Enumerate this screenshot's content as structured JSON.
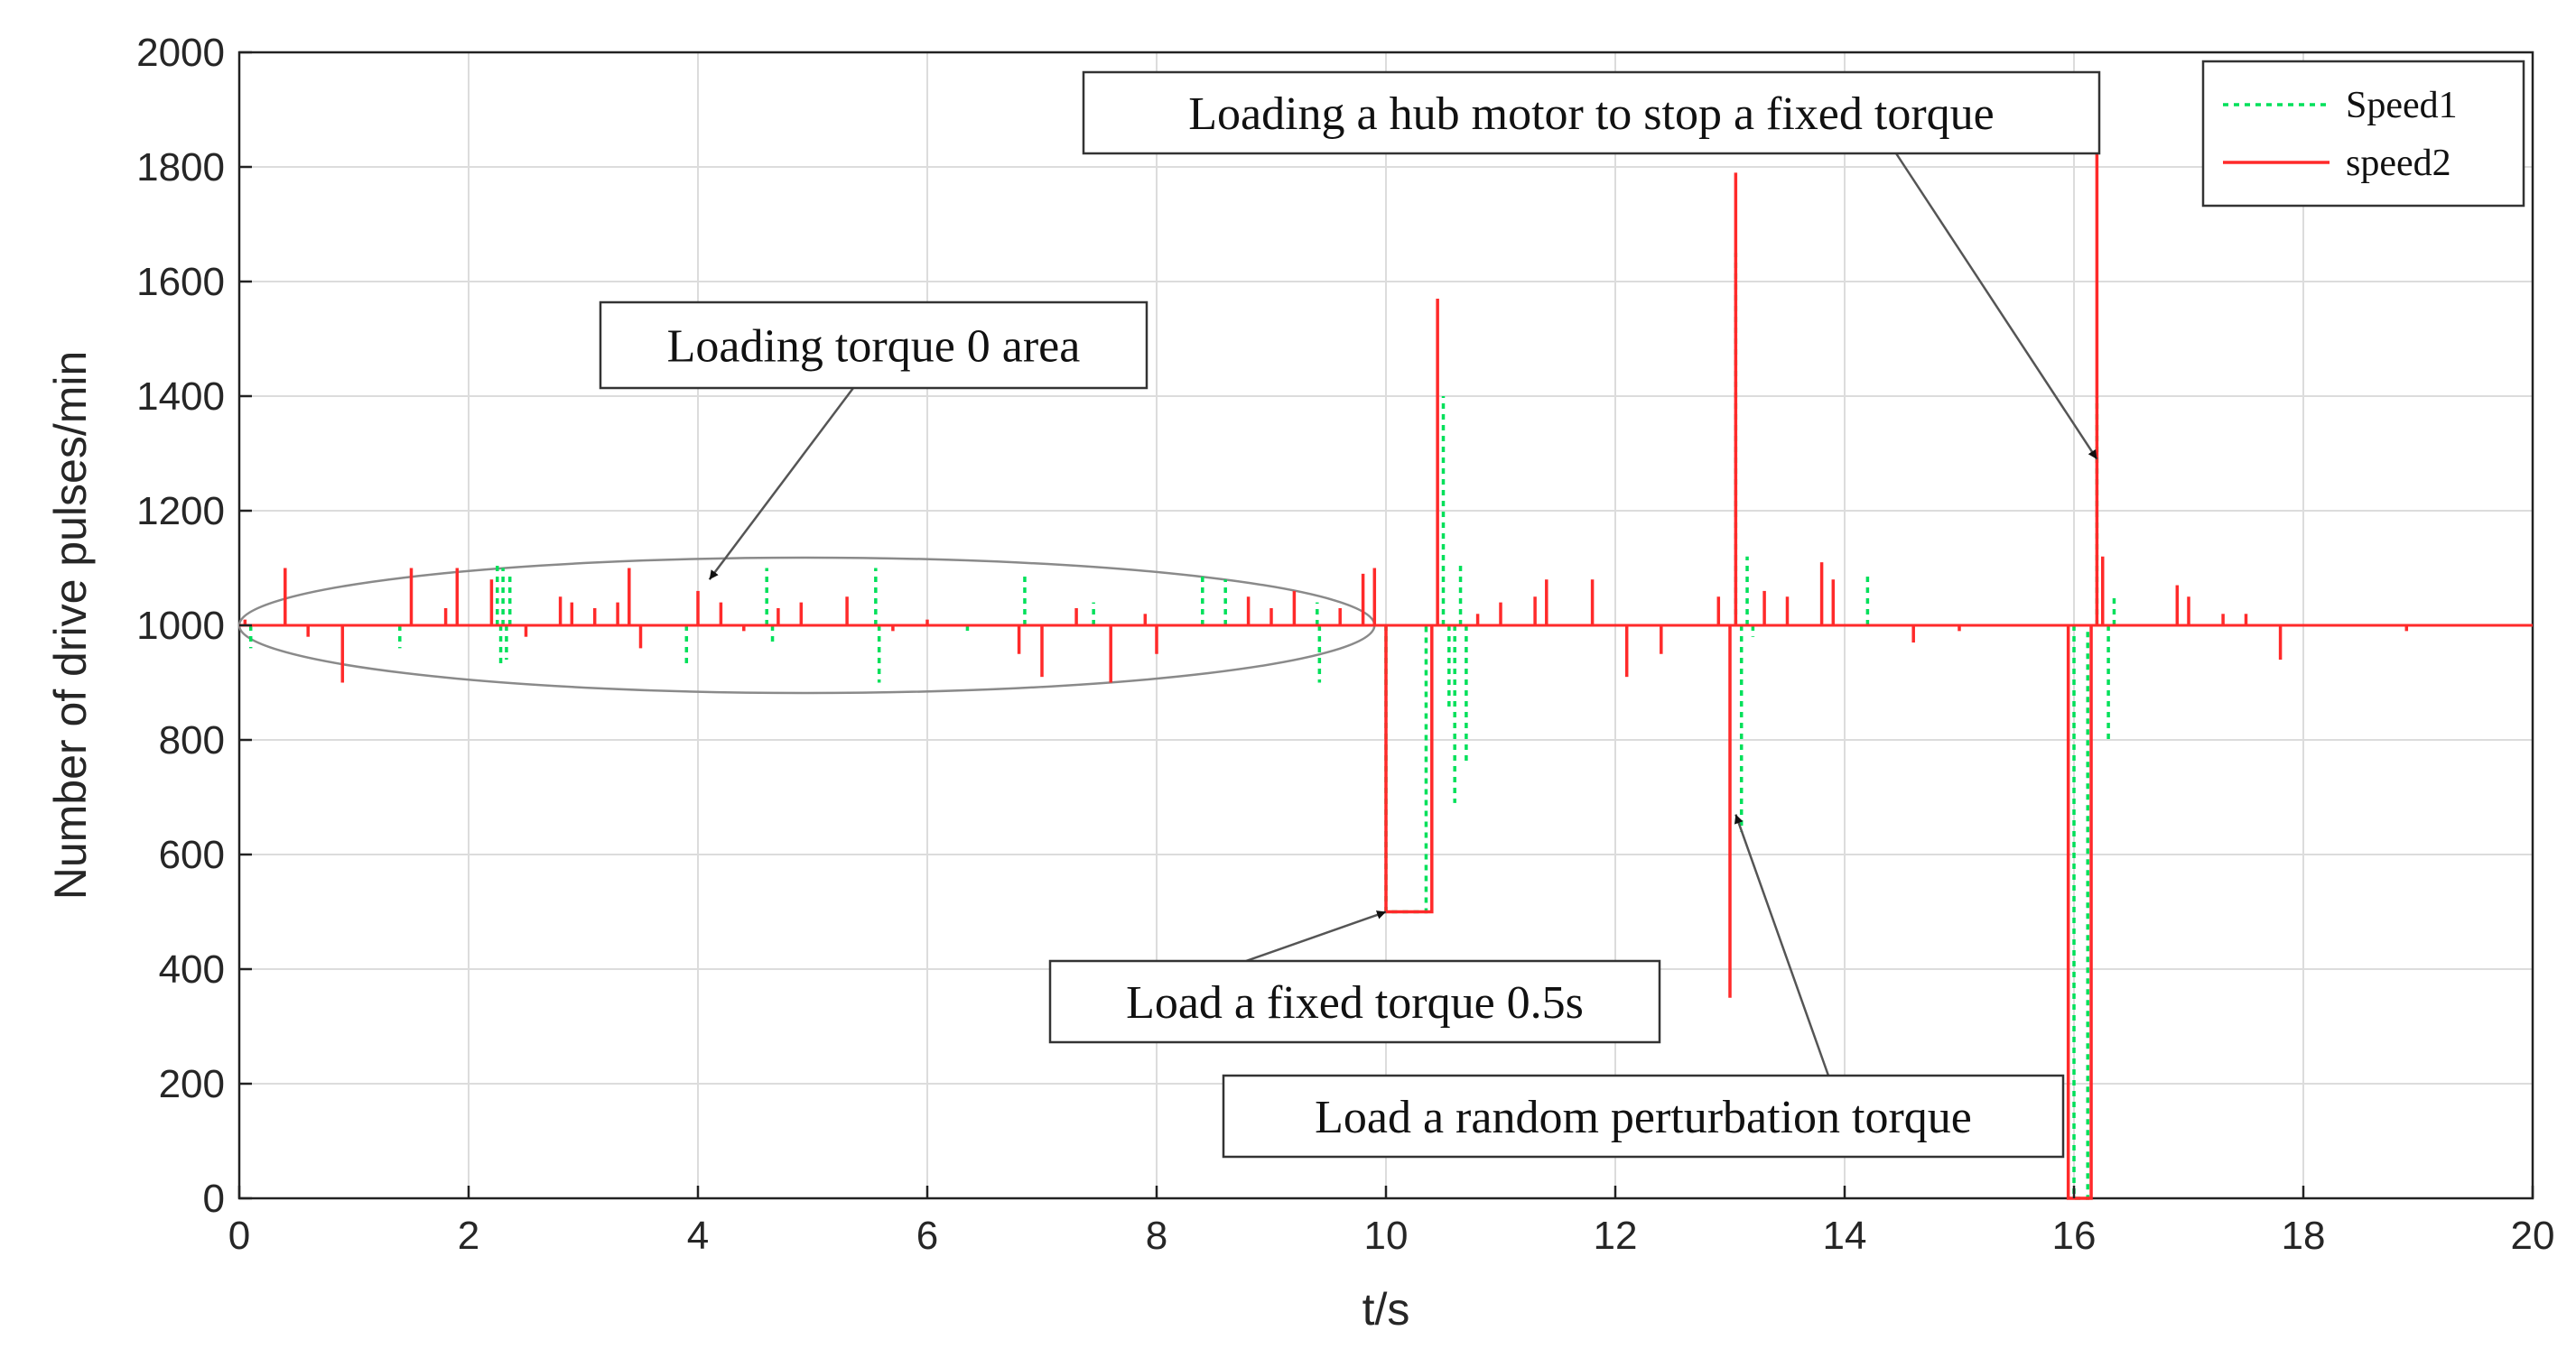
{
  "chart_data": {
    "type": "line",
    "xlabel": "t/s",
    "ylabel": "Number of drive pulses/min",
    "xlim": [
      0,
      20
    ],
    "ylim": [
      0,
      2000
    ],
    "xticks": [
      0,
      2,
      4,
      6,
      8,
      10,
      12,
      14,
      16,
      18,
      20
    ],
    "yticks": [
      0,
      200,
      400,
      600,
      800,
      1000,
      1200,
      1400,
      1600,
      1800,
      2000
    ],
    "grid": true,
    "legend_position": "top-right",
    "series": [
      {
        "name": "Speed1",
        "color": "#00e05a",
        "style": "dotted",
        "baseline": 1000,
        "spikes": [
          [
            0.1,
            960
          ],
          [
            1.4,
            960
          ],
          [
            2.25,
            1110
          ],
          [
            2.28,
            930
          ],
          [
            2.3,
            1100
          ],
          [
            2.33,
            940
          ],
          [
            2.36,
            1090
          ],
          [
            3.9,
            930
          ],
          [
            4.6,
            1100
          ],
          [
            4.65,
            970
          ],
          [
            5.55,
            1100
          ],
          [
            5.58,
            900
          ],
          [
            6.35,
            985
          ],
          [
            6.85,
            1090
          ],
          [
            7.45,
            1040
          ],
          [
            8.4,
            1090
          ],
          [
            8.6,
            1080
          ],
          [
            9.4,
            1040
          ],
          [
            9.42,
            900
          ],
          [
            10.5,
            1400
          ],
          [
            10.55,
            850
          ],
          [
            10.6,
            690
          ],
          [
            10.65,
            1110
          ],
          [
            10.7,
            760
          ],
          [
            13.05,
            1650
          ],
          [
            13.1,
            640
          ],
          [
            13.15,
            1120
          ],
          [
            13.2,
            980
          ],
          [
            14.2,
            1090
          ],
          [
            16.2,
            1400
          ],
          [
            16.3,
            800
          ],
          [
            16.35,
            1050
          ]
        ],
        "segments": [
          [
            [
              10.0,
              1000
            ],
            [
              10.0,
              500
            ],
            [
              10.35,
              500
            ],
            [
              10.35,
              1000
            ]
          ],
          [
            [
              16.0,
              1000
            ],
            [
              16.0,
              0
            ],
            [
              16.12,
              0
            ],
            [
              16.12,
              1000
            ]
          ]
        ]
      },
      {
        "name": "speed2",
        "color": "#ff2a2a",
        "style": "solid",
        "baseline": 1000,
        "spikes": [
          [
            0.05,
            1010
          ],
          [
            0.4,
            1100
          ],
          [
            0.6,
            980
          ],
          [
            0.9,
            900
          ],
          [
            1.5,
            1100
          ],
          [
            1.8,
            1030
          ],
          [
            1.9,
            1100
          ],
          [
            2.2,
            1080
          ],
          [
            2.5,
            980
          ],
          [
            2.8,
            1050
          ],
          [
            2.9,
            1040
          ],
          [
            3.1,
            1030
          ],
          [
            3.3,
            1040
          ],
          [
            3.4,
            1100
          ],
          [
            3.5,
            960
          ],
          [
            4.0,
            1060
          ],
          [
            4.2,
            1040
          ],
          [
            4.4,
            990
          ],
          [
            4.7,
            1030
          ],
          [
            4.9,
            1040
          ],
          [
            5.3,
            1050
          ],
          [
            5.7,
            990
          ],
          [
            6.0,
            1010
          ],
          [
            6.8,
            950
          ],
          [
            7.0,
            910
          ],
          [
            7.3,
            1030
          ],
          [
            7.6,
            900
          ],
          [
            7.9,
            1020
          ],
          [
            8.0,
            950
          ],
          [
            8.8,
            1050
          ],
          [
            9.0,
            1030
          ],
          [
            9.2,
            1060
          ],
          [
            9.6,
            1030
          ],
          [
            9.8,
            1090
          ],
          [
            9.9,
            1100
          ],
          [
            10.45,
            1570
          ],
          [
            10.8,
            1020
          ],
          [
            11.0,
            1040
          ],
          [
            11.3,
            1050
          ],
          [
            11.4,
            1080
          ],
          [
            11.8,
            1080
          ],
          [
            12.1,
            910
          ],
          [
            12.4,
            950
          ],
          [
            12.9,
            1050
          ],
          [
            13.0,
            350
          ],
          [
            13.05,
            1790
          ],
          [
            13.3,
            1060
          ],
          [
            13.5,
            1050
          ],
          [
            13.8,
            1110
          ],
          [
            13.9,
            1080
          ],
          [
            14.6,
            970
          ],
          [
            15.0,
            990
          ],
          [
            16.2,
            1890
          ],
          [
            16.25,
            1120
          ],
          [
            16.9,
            1070
          ],
          [
            17.0,
            1050
          ],
          [
            17.3,
            1020
          ],
          [
            17.5,
            1020
          ],
          [
            17.8,
            940
          ],
          [
            18.9,
            990
          ]
        ],
        "segments": [
          [
            [
              10.0,
              1000
            ],
            [
              10.0,
              500
            ],
            [
              10.4,
              500
            ],
            [
              10.4,
              1000
            ]
          ],
          [
            [
              15.95,
              1000
            ],
            [
              15.95,
              0
            ],
            [
              16.15,
              0
            ],
            [
              16.15,
              1000
            ]
          ]
        ]
      }
    ],
    "annotations": [
      {
        "text": "Loading torque 0 area",
        "arrow_to": [
          4.1,
          1080
        ]
      },
      {
        "text": "Load a fixed torque 0.5s",
        "arrow_to": [
          10.0,
          500
        ]
      },
      {
        "text": "Load a random perturbation torque",
        "arrow_to": [
          13.05,
          670
        ]
      },
      {
        "text": "Loading a hub motor to stop a fixed torque",
        "arrow_to": [
          16.2,
          1290
        ]
      }
    ]
  }
}
